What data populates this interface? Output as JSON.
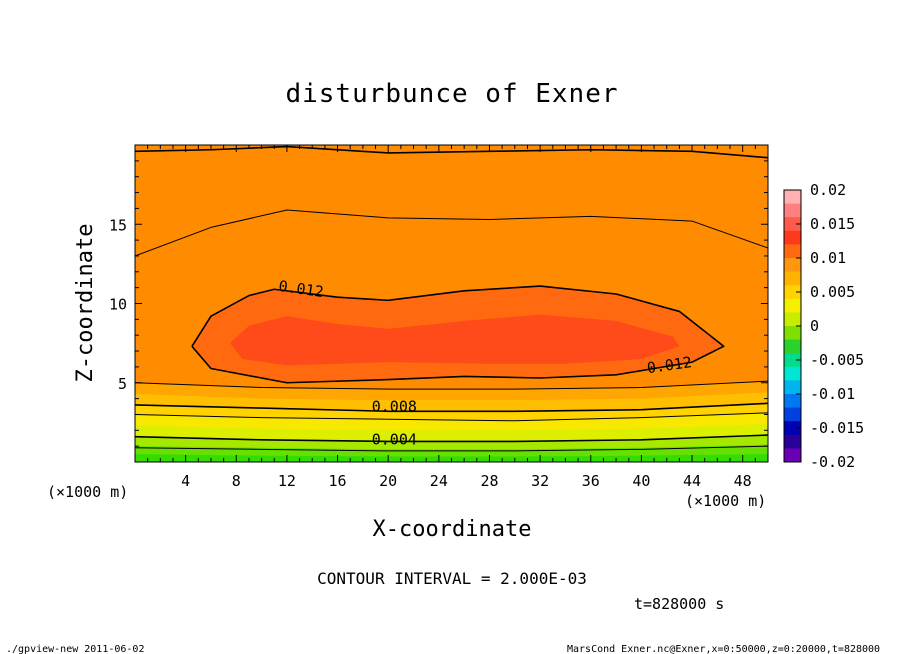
{
  "chart_data": {
    "type": "heatmap",
    "title": "disturbunce of Exner",
    "xlabel": "X-coordinate",
    "ylabel": "Z-coordinate",
    "x_unit": "(×1000 m)",
    "y_unit": "(×1000 m)",
    "xlim": [
      0,
      50
    ],
    "ylim": [
      0,
      20
    ],
    "x_ticks": [
      4,
      8,
      12,
      16,
      20,
      24,
      28,
      32,
      36,
      40,
      44,
      48
    ],
    "y_ticks": [
      5,
      10,
      15
    ],
    "colorbar": {
      "range": [
        -0.02,
        0.02
      ],
      "labels": [
        "0.02",
        "0.015",
        "0.01",
        "0.005",
        "0",
        "-0.005",
        "-0.01",
        "-0.015",
        "-0.02"
      ],
      "colors": [
        "#ffb0b0",
        "#ff8080",
        "#ff5a4a",
        "#ff3a1c",
        "#ff6a10",
        "#ff9610",
        "#ffb300",
        "#ffd200",
        "#f5ef00",
        "#c8ec00",
        "#7fe000",
        "#2cd22c",
        "#00dc8c",
        "#00e6d2",
        "#00b4f0",
        "#0078f0",
        "#0040dc",
        "#0000b4",
        "#2a0096",
        "#6a00b4"
      ]
    },
    "contour_labels": [
      {
        "text": "0.012",
        "x": 11.3,
        "z": 10.8,
        "rotate": 8
      },
      {
        "text": "0.012",
        "x": 40.5,
        "z": 5.6,
        "rotate": -8
      },
      {
        "text": "0.008",
        "x": 18.7,
        "z": 3.2,
        "rotate": 0
      },
      {
        "text": "0.004",
        "x": 18.7,
        "z": 1.1,
        "rotate": 0
      }
    ],
    "bands": [
      {
        "color": "#33dd00",
        "upper": [
          [
            0,
            0.5
          ],
          [
            10,
            0.4
          ],
          [
            20,
            0.35
          ],
          [
            30,
            0.35
          ],
          [
            40,
            0.4
          ],
          [
            50,
            0.5
          ]
        ]
      },
      {
        "color": "#66e000",
        "upper": [
          [
            0,
            1.0
          ],
          [
            10,
            0.9
          ],
          [
            20,
            0.8
          ],
          [
            30,
            0.8
          ],
          [
            40,
            0.9
          ],
          [
            50,
            1.1
          ]
        ]
      },
      {
        "color": "#a6e800",
        "upper": [
          [
            0,
            1.6
          ],
          [
            10,
            1.4
          ],
          [
            20,
            1.3
          ],
          [
            30,
            1.3
          ],
          [
            40,
            1.4
          ],
          [
            50,
            1.7
          ]
        ]
      },
      {
        "color": "#dcef00",
        "upper": [
          [
            0,
            2.3
          ],
          [
            10,
            2.1
          ],
          [
            20,
            2.0
          ],
          [
            30,
            2.0
          ],
          [
            40,
            2.1
          ],
          [
            50,
            2.4
          ]
        ]
      },
      {
        "color": "#f8e800",
        "upper": [
          [
            0,
            3.0
          ],
          [
            10,
            2.8
          ],
          [
            20,
            2.7
          ],
          [
            30,
            2.6
          ],
          [
            40,
            2.8
          ],
          [
            50,
            3.1
          ]
        ]
      },
      {
        "color": "#ffd200",
        "upper": [
          [
            0,
            3.6
          ],
          [
            10,
            3.4
          ],
          [
            20,
            3.2
          ],
          [
            30,
            3.2
          ],
          [
            40,
            3.3
          ],
          [
            50,
            3.7
          ]
        ]
      },
      {
        "color": "#ffbe00",
        "upper": [
          [
            0,
            4.3
          ],
          [
            10,
            4.0
          ],
          [
            20,
            3.9
          ],
          [
            30,
            3.9
          ],
          [
            40,
            4.0
          ],
          [
            50,
            4.4
          ]
        ]
      },
      {
        "color": "#ffa600",
        "upper": [
          [
            0,
            5.0
          ],
          [
            10,
            4.7
          ],
          [
            20,
            4.6
          ],
          [
            30,
            4.6
          ],
          [
            40,
            4.7
          ],
          [
            50,
            5.1
          ]
        ]
      }
    ],
    "top_layers": [
      {
        "color": "#ffd200",
        "pts": [
          [
            0,
            19.5
          ],
          [
            10,
            19.7
          ],
          [
            20,
            19.4
          ],
          [
            30,
            19.5
          ],
          [
            40,
            19.7
          ],
          [
            50,
            19.3
          ]
        ]
      },
      {
        "color": "#ffbe00",
        "pts": [
          [
            0,
            17.8
          ],
          [
            6,
            18.1
          ],
          [
            12,
            18.1
          ],
          [
            20,
            17.6
          ],
          [
            28,
            17.7
          ],
          [
            36,
            17.9
          ],
          [
            44,
            17.8
          ],
          [
            50,
            17.2
          ]
        ]
      },
      {
        "color": "#ffa600",
        "pts": [
          [
            0,
            13.0
          ],
          [
            6,
            14.8
          ],
          [
            12,
            15.9
          ],
          [
            20,
            15.4
          ],
          [
            28,
            15.3
          ],
          [
            36,
            15.5
          ],
          [
            44,
            15.2
          ],
          [
            50,
            13.5
          ]
        ]
      },
      {
        "color": "#ff8c00",
        "pts": [
          [
            0,
            11.0
          ],
          [
            6,
            12.5
          ],
          [
            12,
            13.3
          ],
          [
            20,
            12.8
          ],
          [
            28,
            12.9
          ],
          [
            36,
            13.0
          ],
          [
            44,
            12.7
          ],
          [
            50,
            11.0
          ]
        ]
      }
    ],
    "inner_regions": [
      {
        "color": "#ff6a10",
        "pts": [
          [
            4.5,
            7.3
          ],
          [
            6,
            9.2
          ],
          [
            9,
            10.5
          ],
          [
            11,
            10.9
          ],
          [
            16,
            10.4
          ],
          [
            20,
            10.2
          ],
          [
            26,
            10.8
          ],
          [
            32,
            11.1
          ],
          [
            38,
            10.6
          ],
          [
            43,
            9.5
          ],
          [
            46.5,
            7.3
          ],
          [
            44,
            6.3
          ],
          [
            38,
            5.5
          ],
          [
            32,
            5.3
          ],
          [
            26,
            5.4
          ],
          [
            20,
            5.2
          ],
          [
            12,
            5.0
          ],
          [
            6,
            5.9
          ]
        ]
      },
      {
        "color": "#ff4a1a",
        "pts": [
          [
            7.5,
            7.5
          ],
          [
            9,
            8.6
          ],
          [
            12,
            9.2
          ],
          [
            16,
            8.7
          ],
          [
            20,
            8.4
          ],
          [
            26,
            8.9
          ],
          [
            32,
            9.3
          ],
          [
            38,
            8.9
          ],
          [
            42.5,
            7.9
          ],
          [
            43,
            7.3
          ],
          [
            40,
            6.5
          ],
          [
            34,
            6.2
          ],
          [
            28,
            6.2
          ],
          [
            20,
            6.3
          ],
          [
            12,
            6.1
          ],
          [
            8.5,
            6.5
          ]
        ]
      }
    ],
    "contour_lines": [
      {
        "width": 1.6,
        "pts": [
          [
            0,
            19.6
          ],
          [
            6,
            19.7
          ],
          [
            12,
            19.9
          ],
          [
            20,
            19.5
          ],
          [
            28,
            19.6
          ],
          [
            36,
            19.7
          ],
          [
            44,
            19.6
          ],
          [
            50,
            19.2
          ]
        ]
      },
      {
        "width": 1.0,
        "pts": [
          [
            0,
            13.0
          ],
          [
            6,
            14.8
          ],
          [
            12,
            15.9
          ],
          [
            20,
            15.4
          ],
          [
            28,
            15.3
          ],
          [
            36,
            15.5
          ],
          [
            44,
            15.2
          ],
          [
            50,
            13.5
          ]
        ]
      },
      {
        "width": 1.6,
        "pts": [
          [
            4.5,
            7.3
          ],
          [
            6,
            9.2
          ],
          [
            9,
            10.5
          ],
          [
            11,
            10.9
          ],
          [
            16,
            10.4
          ],
          [
            20,
            10.2
          ],
          [
            26,
            10.8
          ],
          [
            32,
            11.1
          ],
          [
            38,
            10.6
          ],
          [
            43,
            9.5
          ],
          [
            46.5,
            7.3
          ],
          [
            44,
            6.3
          ],
          [
            38,
            5.5
          ],
          [
            32,
            5.3
          ],
          [
            26,
            5.4
          ],
          [
            20,
            5.2
          ],
          [
            12,
            5.0
          ],
          [
            6,
            5.9
          ],
          [
            4.5,
            7.3
          ]
        ]
      },
      {
        "width": 1.0,
        "pts": [
          [
            0,
            5.0
          ],
          [
            10,
            4.7
          ],
          [
            20,
            4.6
          ],
          [
            30,
            4.6
          ],
          [
            40,
            4.7
          ],
          [
            50,
            5.1
          ]
        ]
      },
      {
        "width": 1.6,
        "pts": [
          [
            0,
            3.6
          ],
          [
            10,
            3.4
          ],
          [
            20,
            3.2
          ],
          [
            30,
            3.2
          ],
          [
            40,
            3.3
          ],
          [
            50,
            3.7
          ]
        ]
      },
      {
        "width": 1.0,
        "pts": [
          [
            0,
            3.0
          ],
          [
            10,
            2.8
          ],
          [
            20,
            2.7
          ],
          [
            30,
            2.6
          ],
          [
            40,
            2.8
          ],
          [
            50,
            3.1
          ]
        ]
      },
      {
        "width": 1.6,
        "pts": [
          [
            0,
            1.6
          ],
          [
            10,
            1.4
          ],
          [
            20,
            1.3
          ],
          [
            30,
            1.3
          ],
          [
            40,
            1.4
          ],
          [
            50,
            1.7
          ]
        ]
      },
      {
        "width": 1.0,
        "pts": [
          [
            0,
            0.9
          ],
          [
            10,
            0.8
          ],
          [
            20,
            0.7
          ],
          [
            30,
            0.7
          ],
          [
            40,
            0.8
          ],
          [
            50,
            1.0
          ]
        ]
      }
    ]
  },
  "contour_interval": "CONTOUR INTERVAL = 2.000E-03",
  "time_label": "t=828000 s",
  "footer": {
    "left": "./gpview-new  2011-06-02",
    "right": "MarsCond_Exner.nc@Exner,x=0:50000,z=0:20000,t=828000"
  }
}
